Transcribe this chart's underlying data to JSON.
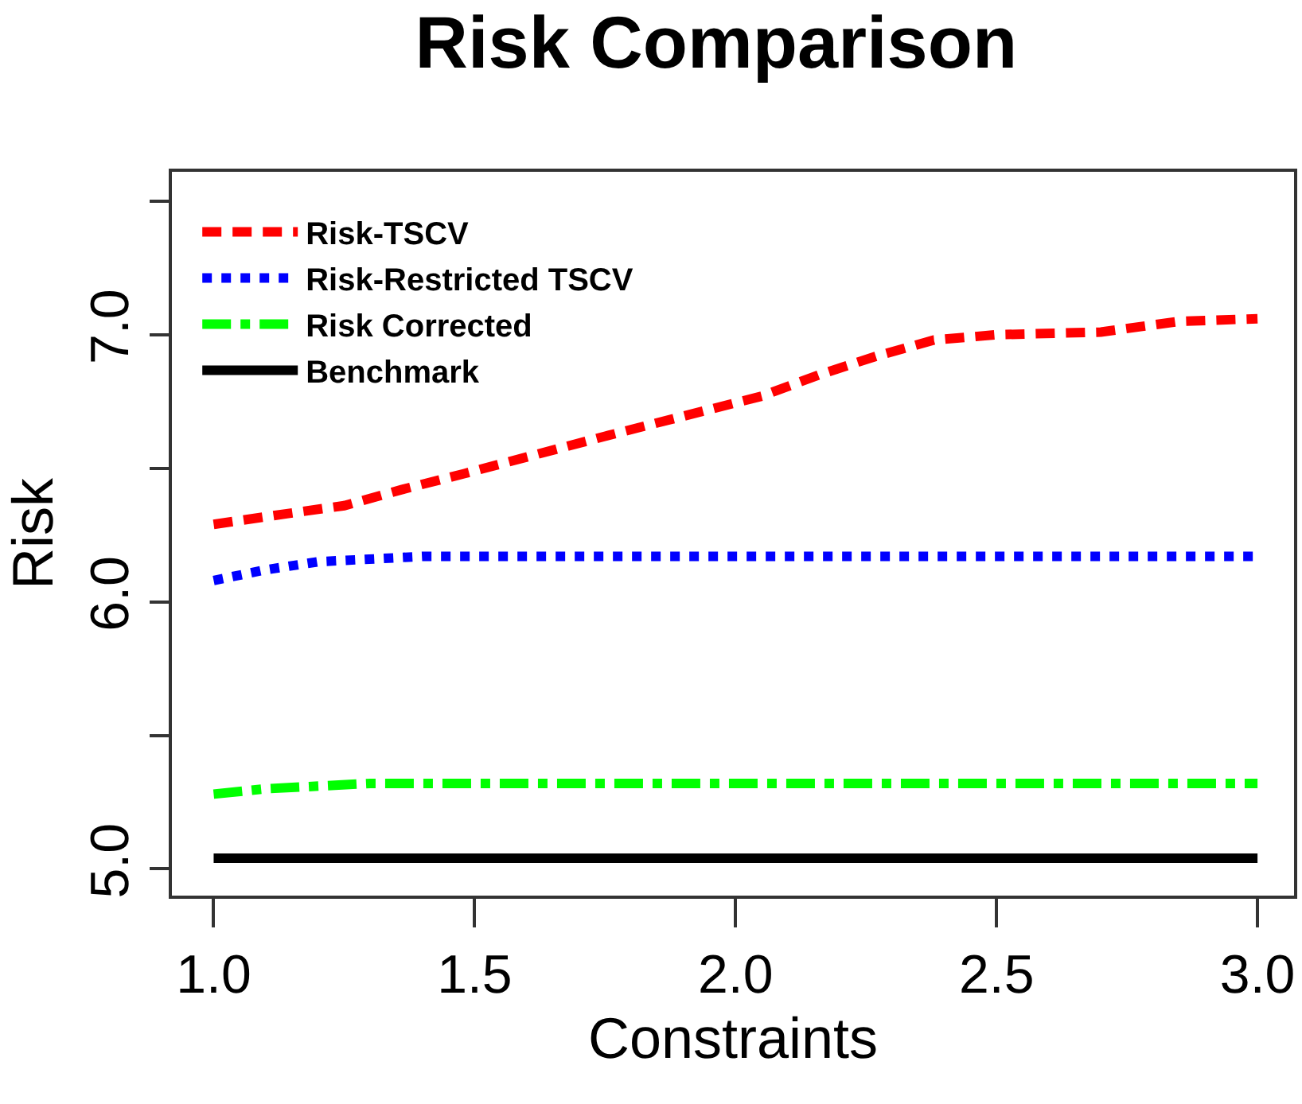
{
  "chart_data": {
    "type": "line",
    "title": "Risk Comparison",
    "xlabel": "Constraints",
    "ylabel": "Risk",
    "xlim": [
      0.92,
      3.07
    ],
    "ylim": [
      4.9,
      7.61
    ],
    "xticks": [
      {
        "value": 1,
        "label": "1.0"
      },
      {
        "value": 1.5,
        "label": "1.5"
      },
      {
        "value": 2,
        "label": "2.0"
      },
      {
        "value": 2.5,
        "label": "2.5"
      },
      {
        "value": 3,
        "label": "3.0"
      }
    ],
    "yticks": [
      {
        "value": 5,
        "label": "5.0"
      },
      {
        "value": 5.5,
        "label": null
      },
      {
        "value": 6,
        "label": "6.0"
      },
      {
        "value": 6.5,
        "label": null
      },
      {
        "value": 7,
        "label": "7.0"
      },
      {
        "value": 7.5,
        "label": null
      }
    ],
    "grid": false,
    "legend": "top left",
    "marker": "none",
    "series": [
      {
        "name": "Risk-TSCV",
        "color": "#ff0000",
        "line_style": "dashed",
        "x": [
          1,
          1.14,
          1.25,
          1.36,
          1.48,
          1.75,
          2.05,
          2.16,
          2.27,
          2.38,
          2.5,
          2.7,
          2.85,
          3
        ],
        "values": [
          6.29,
          6.33,
          6.36,
          6.42,
          6.48,
          6.62,
          6.77,
          6.85,
          6.92,
          6.98,
          7.0,
          7.01,
          7.05,
          7.06
        ]
      },
      {
        "name": "Risk-Restricted TSCV",
        "color": "#0000ff",
        "line_style": "dotted",
        "x": [
          1,
          1.1,
          1.2,
          1.4,
          2,
          3
        ],
        "values": [
          6.08,
          6.12,
          6.15,
          6.17,
          6.17,
          6.17
        ]
      },
      {
        "name": "Risk Corrected",
        "color": "#00ff00",
        "line_style": "dashdot",
        "x": [
          1,
          1.1,
          1.3,
          2,
          3
        ],
        "values": [
          5.28,
          5.3,
          5.32,
          5.32,
          5.32
        ]
      },
      {
        "name": "Benchmark",
        "color": "#000000",
        "line_style": "solid",
        "x": [
          1,
          3
        ],
        "values": [
          5.04,
          5.04
        ]
      }
    ]
  }
}
